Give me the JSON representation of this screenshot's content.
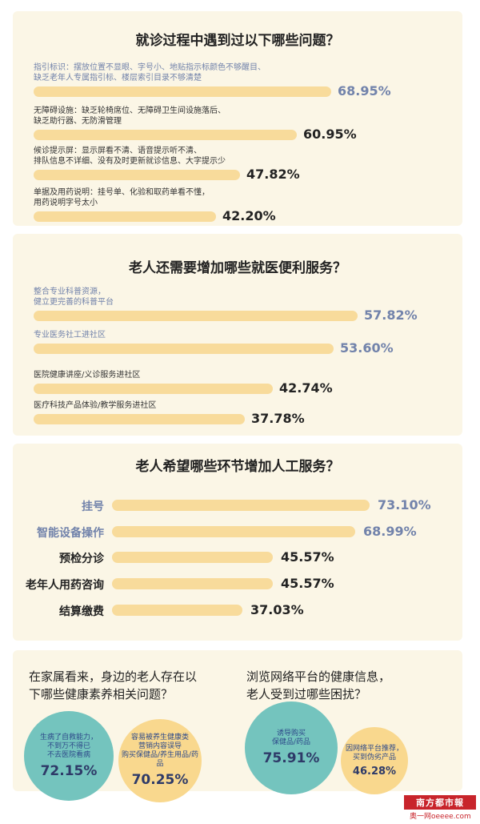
{
  "chart_data": [
    {
      "type": "bar",
      "title": "就诊过程中遇到过以下哪些问题？",
      "xlim": [
        0,
        100
      ],
      "categories": [
        "指引标识：摆放位置不显眼、字号小、地贴指示标颜色不够醒目、缺乏老年人专属指引标、楼层索引目录不够清楚",
        "无障碍设施：缺乏轮椅席位、无障碍卫生间设施落后、缺乏助行器、无防滑管理",
        "候诊提示屏：显示屏看不清、语音提示听不清、排队信息不详细、没有及时更新就诊信息、大字提示少",
        "单据及用药说明：挂号单、化验和取药单看不懂，用药说明字号太小"
      ],
      "category_lines": [
        [
          "指引标识：摆放位置不显眼、字号小、地贴指示标颜色不够醒目、",
          "缺乏老年人专属指引标、楼层索引目录不够清楚"
        ],
        [
          "无障碍设施：缺乏轮椅席位、无障碍卫生间设施落后、",
          "缺乏助行器、无防滑管理"
        ],
        [
          "候诊提示屏：显示屏看不清、语音提示听不清、",
          "排队信息不详细、没有及时更新就诊信息、大字提示少"
        ],
        [
          "单据及用药说明：挂号单、化验和取药单看不懂，",
          "用药说明字号太小"
        ]
      ],
      "values": [
        68.95,
        60.95,
        47.82,
        42.2
      ],
      "value_labels": [
        "68.95%",
        "60.95%",
        "47.82%",
        "42.20%"
      ],
      "label_colors": [
        "#7283ab",
        "#333333",
        "#333333",
        "#333333"
      ],
      "pct_colors": [
        "#7283ab",
        "#222222",
        "#222222",
        "#222222"
      ]
    },
    {
      "type": "bar",
      "title": "老人还需要增加哪些就医便利服务？",
      "xlim": [
        0,
        100
      ],
      "categories": [
        "整合专业科普资源，健立更完善的科普平台",
        "专业医务社工进社区",
        "医院健康讲座/义诊服务进社区",
        "医疗科技产品体验/教学服务进社区"
      ],
      "category_lines": [
        [
          "整合专业科普资源，",
          "健立更完善的科普平台"
        ],
        [
          "专业医务社工进社区"
        ],
        [
          "医院健康讲座/义诊服务进社区"
        ],
        [
          "医疗科技产品体验/教学服务进社区"
        ]
      ],
      "values": [
        57.82,
        53.6,
        42.74,
        37.78
      ],
      "value_labels": [
        "57.82%",
        "53.60%",
        "42.74%",
        "37.78%"
      ],
      "label_colors": [
        "#7283ab",
        "#7283ab",
        "#333333",
        "#333333"
      ],
      "pct_colors": [
        "#7283ab",
        "#7283ab",
        "#222222",
        "#222222"
      ]
    },
    {
      "type": "bar",
      "title": "老人希望哪些环节增加人工服务？",
      "xlim": [
        0,
        100
      ],
      "categories": [
        "挂号",
        "智能设备操作",
        "预检分诊",
        "老年人用药咨询",
        "结算缴费"
      ],
      "values": [
        73.1,
        68.99,
        45.57,
        45.57,
        37.03
      ],
      "value_labels": [
        "73.10%",
        "68.99%",
        "45.57%",
        "45.57%",
        "37.03%"
      ],
      "label_colors": [
        "#7283ab",
        "#7283ab",
        "#222222",
        "#222222",
        "#222222"
      ],
      "pct_colors": [
        "#7283ab",
        "#7283ab",
        "#222222",
        "#222222",
        "#222222"
      ]
    },
    {
      "type": "bubble",
      "title": "在家属看来，身边的老人存在以下哪些健康素养相关问题？",
      "title_lines": [
        "在家属看来，身边的老人存在以",
        "下哪些健康素养相关问题？"
      ],
      "categories": [
        "生病了自救能力不到万不得已不去医院看病",
        "容易被养生健康类营销内容误导购买保健品/养生用品/药品"
      ],
      "category_lines": [
        [
          "生病了自救能力，",
          "不到万不得已",
          "不去医院看病"
        ],
        [
          "容易被养生健康类",
          "营销内容误导",
          "购买保健品/养生用品/药品"
        ]
      ],
      "values": [
        72.15,
        70.25
      ],
      "value_labels": [
        "72.15%",
        "70.25%"
      ]
    },
    {
      "type": "bubble",
      "title": "浏览网络平台的健康信息，老人受到过哪些困扰？",
      "title_lines": [
        "浏览网络平台的健康信息，",
        "老人受到过哪些困扰？"
      ],
      "categories": [
        "诱导购买保健品/药品",
        "因网络平台推荐，买到伪劣产品"
      ],
      "category_lines": [
        [
          "诱导购买",
          "保健品/药品"
        ],
        [
          "因网络平台推荐，",
          "买到伪劣产品"
        ]
      ],
      "values": [
        75.91,
        46.28
      ],
      "value_labels": [
        "75.91%",
        "46.28%"
      ]
    }
  ],
  "logo": {
    "name": "南方都市報",
    "sub": "奥一网oeeee.com"
  },
  "colors": {
    "bar": "#f8db9b",
    "teal": "#74c4be",
    "peach": "#f9d88e"
  }
}
